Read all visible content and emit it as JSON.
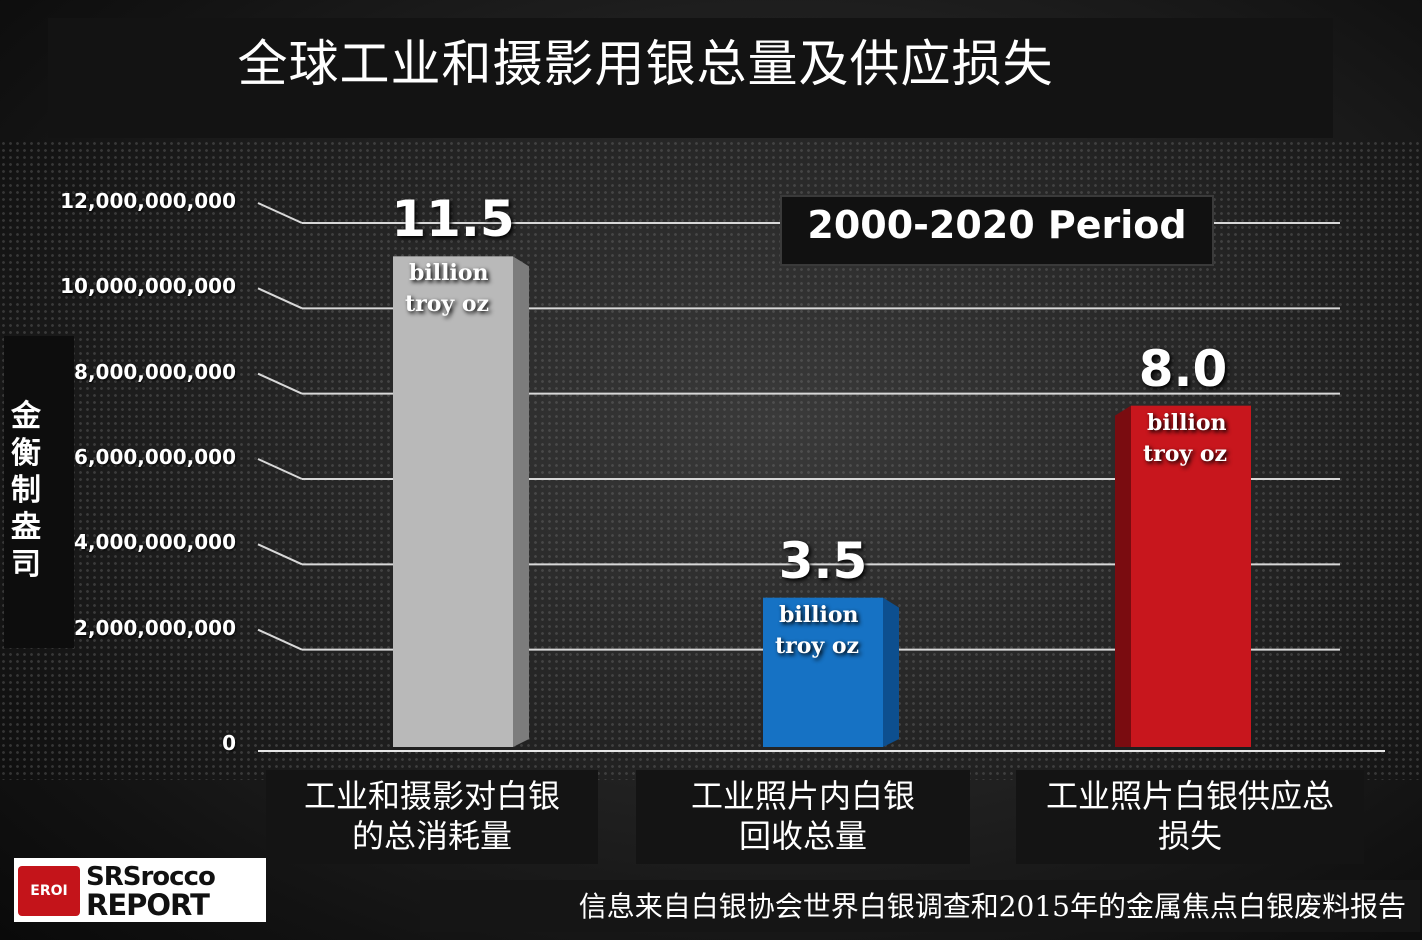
{
  "chart_data": {
    "type": "bar",
    "title": "全球工业和摄影用银总量及供应损失",
    "ylabel": "金衡制盎司",
    "annotation": "2000-2020 Period",
    "ylim": [
      0,
      12000000000
    ],
    "y_ticks": [
      "12,000,000,000",
      "10,000,000,000",
      "8,000,000,000",
      "6,000,000,000",
      "4,000,000,000",
      "2,000,000,000",
      "0"
    ],
    "y_tick_values": [
      12000000000,
      10000000000,
      8000000000,
      6000000000,
      4000000000,
      2000000000,
      0
    ],
    "categories": [
      "工业和摄影对白银的总消耗量",
      "工业照片内白银回收总量",
      "工业照片白银供应总损失"
    ],
    "category_lines": [
      [
        "工业和摄影对白银",
        "的总消耗量"
      ],
      [
        "工业照片内白银",
        "回收总量"
      ],
      [
        "工业照片白银供应总",
        "损失"
      ]
    ],
    "values": [
      11500000000,
      3500000000,
      8000000000
    ],
    "value_labels": [
      "11.5",
      "3.5",
      "8.0"
    ],
    "unit_line1": "billion",
    "unit_line2": "troy oz",
    "colors": [
      "#b9b9b9",
      "#1672c4",
      "#c8161d"
    ],
    "side_colors": [
      "#7c7c7c",
      "#0d4f8f",
      "#7a0c10"
    ],
    "grid": true
  },
  "source": "信息来自白银协会世界白银调查和2015年的金属焦点白银废料报告",
  "logo": {
    "badge": "EROI",
    "line1": "SRSrocco",
    "line2": "REPORT"
  }
}
